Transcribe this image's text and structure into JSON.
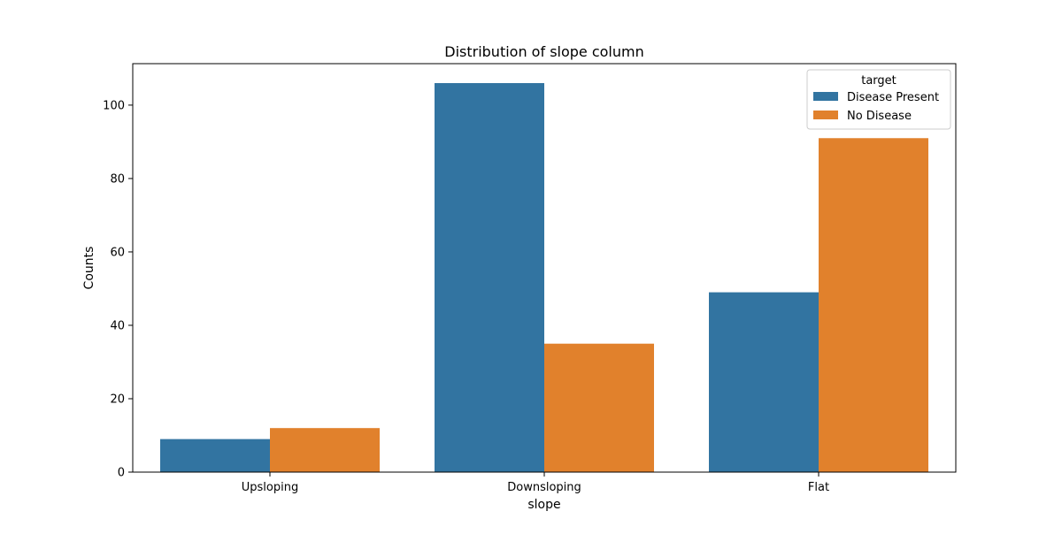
{
  "chart_data": {
    "type": "bar",
    "title": "Distribution of slope column",
    "xlabel": "slope",
    "ylabel": "Counts",
    "categories": [
      "Upsloping",
      "Downsloping",
      "Flat"
    ],
    "series": [
      {
        "name": "Disease Present",
        "values": [
          9,
          106,
          49
        ],
        "color": "#3274a1"
      },
      {
        "name": "No Disease",
        "values": [
          12,
          35,
          91
        ],
        "color": "#e1812c"
      }
    ],
    "ylim": [
      0,
      111.3
    ],
    "yticks": [
      0,
      20,
      40,
      60,
      80,
      100
    ],
    "grid": false,
    "legend": {
      "title": "target",
      "placement": "top-right"
    }
  }
}
